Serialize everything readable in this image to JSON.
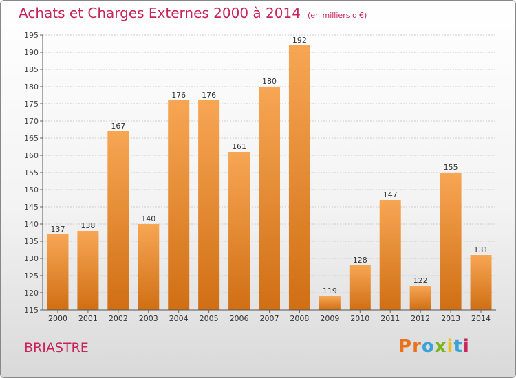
{
  "title": "Achats et Charges Externes 2000 à 2014",
  "subtitle": "(en milliers d'€)",
  "commune": "BRIASTRE",
  "logo": {
    "letters": [
      "P",
      "r",
      "o",
      "x",
      "i",
      "t",
      "i"
    ],
    "colors": [
      "#e8731a",
      "#e8731a",
      "#3aa2d8",
      "#7ab51d",
      "#e8c21a",
      "#3aa2d8",
      "#c8245a"
    ]
  },
  "colors": {
    "bar_light": "#f7a654",
    "bar_dark": "#d06f14",
    "title": "#c8245a"
  },
  "chart_data": {
    "type": "bar",
    "categories": [
      "2000",
      "2001",
      "2002",
      "2003",
      "2004",
      "2005",
      "2006",
      "2007",
      "2008",
      "2009",
      "2010",
      "2011",
      "2012",
      "2013",
      "2014"
    ],
    "values": [
      137,
      138,
      167,
      140,
      176,
      176,
      161,
      180,
      192,
      119,
      128,
      147,
      122,
      155,
      131
    ],
    "ylim": [
      115,
      195
    ],
    "yticks": [
      115,
      120,
      125,
      130,
      135,
      140,
      145,
      150,
      155,
      160,
      165,
      170,
      175,
      180,
      185,
      190,
      195
    ],
    "grid": true,
    "xlabel": "",
    "ylabel": ""
  }
}
